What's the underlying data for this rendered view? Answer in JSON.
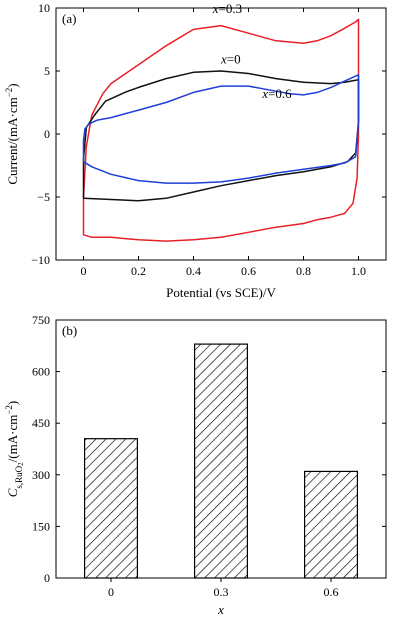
{
  "chart_data": [
    {
      "type": "line",
      "panel_label": "(a)",
      "xlabel": "Potential (vs SCE)/V",
      "ylabel_text": "Current/(mA·cm",
      "ylabel_sup": "−2",
      "ylabel_close": ")",
      "xlim": [
        -0.1,
        1.1
      ],
      "ylim": [
        -10,
        10
      ],
      "xticks": [
        {
          "value": 0,
          "label": "0"
        },
        {
          "value": 0.2,
          "label": "0.2"
        },
        {
          "value": 0.4,
          "label": "0.4"
        },
        {
          "value": 0.6,
          "label": "0.6"
        },
        {
          "value": 0.8,
          "label": "0.8"
        },
        {
          "value": 1.0,
          "label": "1.0"
        }
      ],
      "yticks": [
        {
          "value": 10,
          "label": "10"
        },
        {
          "value": 5,
          "label": "5"
        },
        {
          "value": 0,
          "label": "0"
        },
        {
          "value": -5,
          "label": "−5"
        },
        {
          "value": -10,
          "label": "−10"
        }
      ],
      "grid": false,
      "series": [
        {
          "name_var": "x",
          "name_value": "=0.3",
          "color": "#e8202a",
          "label_anchor": [
            0.47,
            9.6
          ],
          "x": [
            0.0,
            0.0,
            0.01,
            0.03,
            0.07,
            0.1,
            0.2,
            0.3,
            0.4,
            0.5,
            0.6,
            0.7,
            0.8,
            0.85,
            0.9,
            0.95,
            0.99,
            1.0,
            1.0,
            0.995,
            0.98,
            0.95,
            0.9,
            0.85,
            0.8,
            0.7,
            0.6,
            0.5,
            0.4,
            0.3,
            0.2,
            0.1,
            0.03,
            0.0
          ],
          "y": [
            -7.8,
            -5.0,
            -1.0,
            1.5,
            3.2,
            4.0,
            5.5,
            7.0,
            8.3,
            8.6,
            8.0,
            7.4,
            7.2,
            7.4,
            7.8,
            8.4,
            8.9,
            9.1,
            0.0,
            -3.5,
            -5.5,
            -6.3,
            -6.6,
            -6.8,
            -7.1,
            -7.4,
            -7.8,
            -8.2,
            -8.4,
            -8.5,
            -8.4,
            -8.2,
            -8.2,
            -8.0
          ]
        },
        {
          "name_var": "x",
          "name_value": "=0",
          "color": "#111111",
          "label_anchor": [
            0.5,
            5.6
          ],
          "x": [
            0.0,
            0.0,
            0.01,
            0.04,
            0.08,
            0.15,
            0.2,
            0.3,
            0.4,
            0.5,
            0.6,
            0.7,
            0.8,
            0.9,
            0.95,
            1.0,
            1.0,
            0.99,
            0.96,
            0.9,
            0.8,
            0.7,
            0.6,
            0.5,
            0.4,
            0.3,
            0.2,
            0.1,
            0.0
          ],
          "y": [
            -5.0,
            -2.0,
            0.5,
            1.5,
            2.6,
            3.3,
            3.7,
            4.4,
            4.9,
            5.0,
            4.8,
            4.4,
            4.1,
            4.0,
            4.1,
            4.3,
            1.0,
            -1.5,
            -2.2,
            -2.6,
            -3.0,
            -3.3,
            -3.7,
            -4.1,
            -4.6,
            -5.1,
            -5.3,
            -5.2,
            -5.1
          ]
        },
        {
          "name_var": "x",
          "name_value": "=0.6",
          "color": "#1f3fd6",
          "label_anchor": [
            0.65,
            2.85
          ],
          "x": [
            0.0,
            0.0,
            0.005,
            0.02,
            0.05,
            0.1,
            0.2,
            0.3,
            0.4,
            0.5,
            0.6,
            0.7,
            0.75,
            0.8,
            0.85,
            0.9,
            0.95,
            1.0,
            1.0,
            0.99,
            0.95,
            0.9,
            0.8,
            0.7,
            0.6,
            0.5,
            0.4,
            0.3,
            0.2,
            0.1,
            0.03,
            0.0
          ],
          "y": [
            -2.0,
            -0.5,
            0.4,
            0.8,
            1.1,
            1.3,
            1.9,
            2.5,
            3.3,
            3.8,
            3.8,
            3.4,
            3.2,
            3.1,
            3.3,
            3.7,
            4.2,
            4.7,
            1.0,
            -1.8,
            -2.3,
            -2.5,
            -2.8,
            -3.1,
            -3.5,
            -3.8,
            -3.9,
            -3.9,
            -3.7,
            -3.2,
            -2.6,
            -2.2
          ]
        }
      ]
    },
    {
      "type": "bar",
      "panel_label": "(b)",
      "xlabel": "x",
      "ylabel_main": "C",
      "ylabel_sub": "s,RuO",
      "ylabel_sub2": "2",
      "ylabel_unit": "/(mA·cm",
      "ylabel_sup": "−2",
      "ylabel_close": ")",
      "categories": [
        "0",
        "0.3",
        "0.6"
      ],
      "values": [
        405,
        680,
        310
      ],
      "ylim": [
        0,
        750
      ],
      "yticks": [
        {
          "value": 0,
          "label": "0"
        },
        {
          "value": 150,
          "label": "150"
        },
        {
          "value": 300,
          "label": "300"
        },
        {
          "value": 450,
          "label": "450"
        },
        {
          "value": 600,
          "label": "600"
        },
        {
          "value": 750,
          "label": "750"
        }
      ],
      "fill": "diagonal-hatch",
      "grid": false
    }
  ]
}
